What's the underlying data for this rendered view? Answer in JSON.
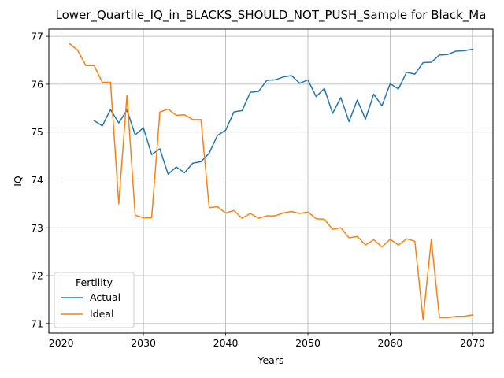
{
  "chart_data": {
    "type": "line",
    "title": "Lower_Quartile_IQ_in_BLACKS_SHOULD_NOT_PUSH_Sample for Black_Ma",
    "xlabel": "Years",
    "ylabel": "IQ",
    "xlim": [
      2018.5,
      2072.5
    ],
    "ylim": [
      70.8,
      77.15
    ],
    "xticks": [
      2020,
      2030,
      2040,
      2050,
      2060,
      2070
    ],
    "yticks": [
      71,
      72,
      73,
      74,
      75,
      76,
      77
    ],
    "grid": true,
    "legend": {
      "title": "Fertility",
      "placement": "lower-left"
    },
    "series": [
      {
        "name": "Actual",
        "color": "#1f77b4",
        "x": [
          2024,
          2025,
          2026,
          2027,
          2028,
          2029,
          2030,
          2031,
          2032,
          2033,
          2034,
          2035,
          2036,
          2037,
          2038,
          2039,
          2040,
          2041,
          2042,
          2043,
          2044,
          2045,
          2046,
          2047,
          2048,
          2049,
          2050,
          2051,
          2052,
          2053,
          2054,
          2055,
          2056,
          2057,
          2058,
          2059,
          2060,
          2061,
          2062,
          2063,
          2064,
          2065,
          2066,
          2067,
          2068,
          2069,
          2070
        ],
        "y": [
          75.24,
          75.13,
          75.47,
          75.19,
          75.46,
          74.94,
          75.09,
          74.53,
          74.65,
          74.12,
          74.27,
          74.15,
          74.35,
          74.38,
          74.56,
          74.93,
          75.04,
          75.42,
          75.45,
          75.83,
          75.85,
          76.08,
          76.09,
          76.15,
          76.18,
          76.02,
          76.09,
          75.74,
          75.91,
          75.39,
          75.72,
          75.22,
          75.67,
          75.27,
          75.79,
          75.55,
          76.01,
          75.9,
          76.25,
          76.21,
          76.45,
          76.46,
          76.61,
          76.62,
          76.69,
          76.7,
          76.73
        ]
      },
      {
        "name": "Ideal",
        "color": "#ff7f0e",
        "x": [
          2021,
          2022,
          2023,
          2024,
          2025,
          2026,
          2027,
          2028,
          2029,
          2030,
          2031,
          2032,
          2033,
          2034,
          2035,
          2036,
          2037,
          2038,
          2039,
          2040,
          2041,
          2042,
          2043,
          2044,
          2045,
          2046,
          2047,
          2048,
          2049,
          2050,
          2051,
          2052,
          2053,
          2054,
          2055,
          2056,
          2057,
          2058,
          2059,
          2060,
          2061,
          2062,
          2063,
          2064,
          2065,
          2066,
          2067,
          2068,
          2069,
          2070
        ],
        "y": [
          76.85,
          76.71,
          76.39,
          76.39,
          76.04,
          76.04,
          73.5,
          75.77,
          73.26,
          73.21,
          73.21,
          75.42,
          75.48,
          75.35,
          75.36,
          75.26,
          75.26,
          73.42,
          73.44,
          73.31,
          73.36,
          73.2,
          73.3,
          73.2,
          73.25,
          73.25,
          73.31,
          73.34,
          73.3,
          73.33,
          73.19,
          73.18,
          72.97,
          73.0,
          72.79,
          72.82,
          72.64,
          72.75,
          72.6,
          72.76,
          72.64,
          72.77,
          72.72,
          71.09,
          72.75,
          71.12,
          71.12,
          71.15,
          71.15,
          71.18
        ]
      }
    ]
  }
}
